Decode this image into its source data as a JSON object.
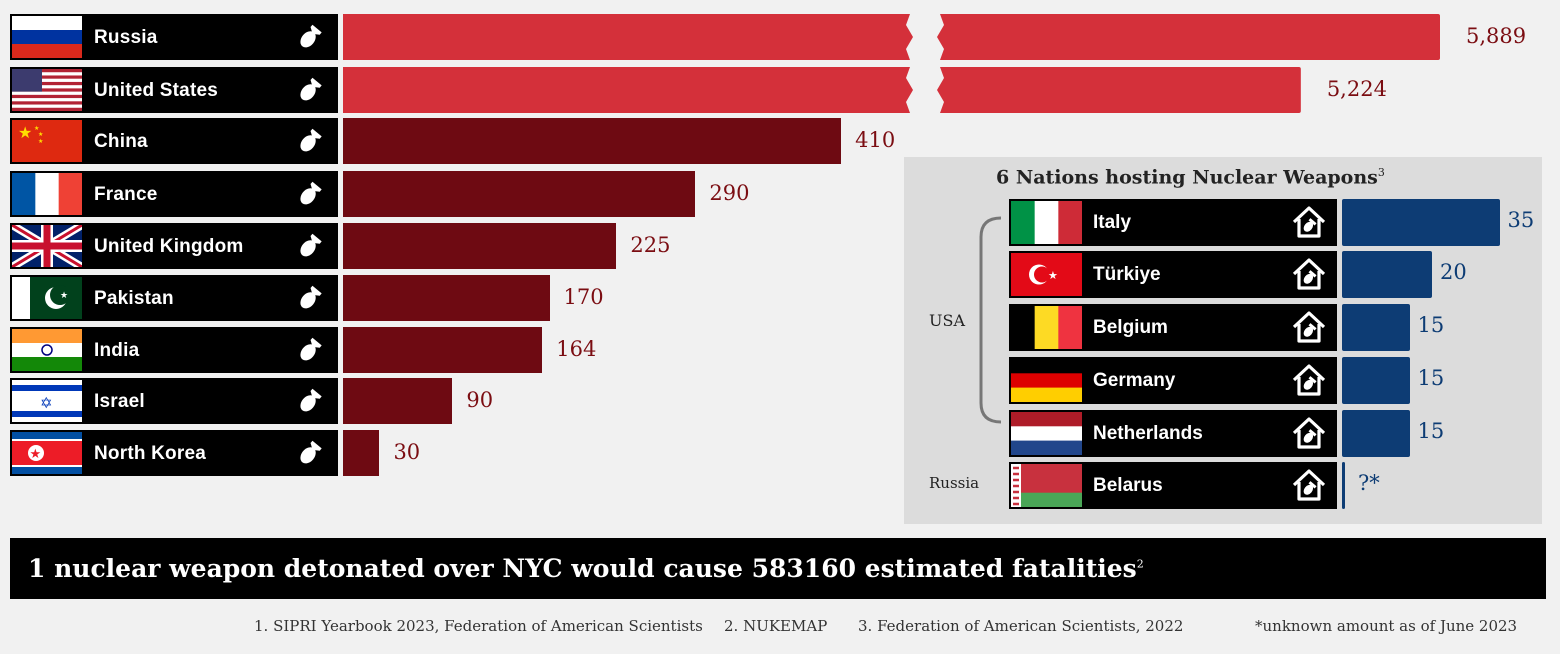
{
  "chart_data": [
    {
      "type": "bar",
      "categories": [
        "Russia",
        "United States",
        "China",
        "France",
        "United Kingdom",
        "Pakistan",
        "India",
        "Israel",
        "North Korea"
      ],
      "values": [
        5889,
        5224,
        410,
        290,
        225,
        170,
        164,
        90,
        30
      ],
      "value_labels": [
        "5,889",
        "5,224",
        "410",
        "290",
        "225",
        "170",
        "164",
        "90",
        "30"
      ],
      "axis_break": true,
      "colors": {
        "broken_bars": "#d4303a",
        "bars": "#6e0a12",
        "values": "#7b0d12"
      }
    },
    {
      "type": "bar",
      "title": "6 Nations hosting Nuclear Weapons",
      "title_note": "3",
      "categories": [
        "Italy",
        "Türkiye",
        "Belgium",
        "Germany",
        "Netherlands",
        "Belarus"
      ],
      "values": [
        35,
        20,
        15,
        15,
        15,
        null
      ],
      "value_labels": [
        "35",
        "20",
        "15",
        "15",
        "15",
        "?*"
      ],
      "groups": [
        {
          "label": "USA",
          "members": [
            "Italy",
            "Türkiye",
            "Belgium",
            "Germany",
            "Netherlands"
          ]
        },
        {
          "label": "Russia",
          "members": [
            "Belarus"
          ]
        }
      ],
      "colors": {
        "bars": "#0d3c74"
      }
    }
  ],
  "banner": {
    "text": "1 nuclear weapon detonated over NYC would cause 583160 estimated fatalities",
    "note": "2"
  },
  "footnotes": [
    "1. SIPRI Yearbook 2023, Federation of American Scientists",
    "2. NUKEMAP",
    "3. Federation of American Scientists, 2022",
    "*unknown amount as of June 2023"
  ]
}
